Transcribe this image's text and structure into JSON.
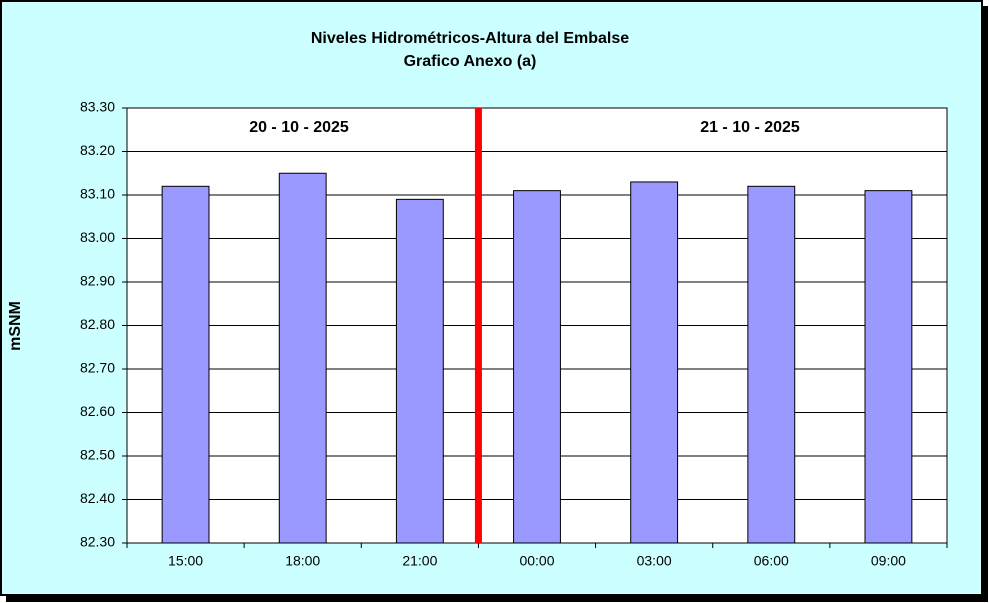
{
  "chart_data": {
    "type": "bar",
    "title": "Niveles Hidrométricos-Altura del Embalse",
    "subtitle": "Grafico Anexo (a)",
    "y_label": "mSNM",
    "annotations": [
      "20 - 10 - 2025",
      "21 - 10 - 2025"
    ],
    "categories": [
      "15:00",
      "18:00",
      "21:00",
      "00:00",
      "03:00",
      "06:00",
      "09:00"
    ],
    "values": [
      83.12,
      83.15,
      83.09,
      83.11,
      83.13,
      83.12,
      83.11
    ],
    "color": "#9999ff",
    "ylim": [
      82.3,
      83.3
    ],
    "yticks": [
      {
        "value": 82.3,
        "label": "82.30"
      },
      {
        "value": 82.4,
        "label": "82.40"
      },
      {
        "value": 82.5,
        "label": "82.50"
      },
      {
        "value": 82.6,
        "label": "82.60"
      },
      {
        "value": 82.7,
        "label": "82.70"
      },
      {
        "value": 82.8,
        "label": "82.80"
      },
      {
        "value": 82.9,
        "label": "82.90"
      },
      {
        "value": 83.0,
        "label": "83.00"
      },
      {
        "value": 83.1,
        "label": "83.10"
      },
      {
        "value": 83.2,
        "label": "83.20"
      },
      {
        "value": 83.3,
        "label": "83.30"
      }
    ],
    "grid": true
  }
}
